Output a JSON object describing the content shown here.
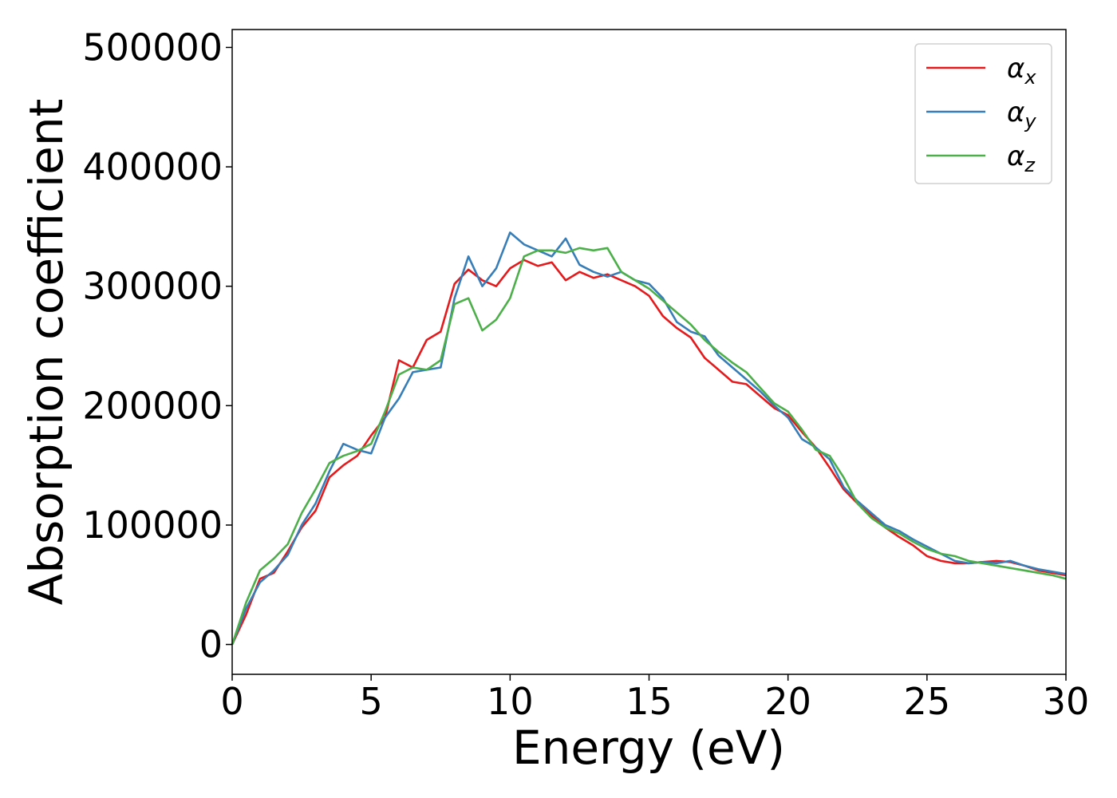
{
  "chart_data": {
    "type": "line",
    "title": "",
    "xlabel": "Energy (eV)",
    "ylabel": "Absorption coefficient",
    "xlim": [
      0,
      30
    ],
    "ylim": [
      -25000,
      515000
    ],
    "xticks": [
      0,
      5,
      10,
      15,
      20,
      25,
      30
    ],
    "xtick_labels": [
      "0",
      "5",
      "10",
      "15",
      "20",
      "25",
      "30"
    ],
    "yticks": [
      0,
      100000,
      200000,
      300000,
      400000,
      500000
    ],
    "ytick_labels": [
      "0",
      "100000",
      "200000",
      "300000",
      "400000",
      "500000"
    ],
    "grid": false,
    "legend_position": "top-right",
    "series": [
      {
        "name": "α_x",
        "symbol": "α",
        "subscript": "x",
        "color": "#e41a1c",
        "x": [
          0,
          0.5,
          1,
          1.5,
          2,
          2.5,
          3,
          3.5,
          4,
          4.5,
          5,
          5.5,
          6,
          6.5,
          7,
          7.5,
          8,
          8.5,
          9,
          9.5,
          10,
          10.5,
          11,
          11.5,
          12,
          12.5,
          13,
          13.5,
          14,
          14.5,
          15,
          15.5,
          16,
          16.5,
          17,
          17.5,
          18,
          18.5,
          19,
          19.5,
          20,
          20.5,
          21,
          21.5,
          22,
          22.5,
          23,
          23.5,
          24,
          24.5,
          25,
          25.5,
          26,
          26.5,
          27,
          27.5,
          28,
          28.5,
          29,
          29.5,
          30
        ],
        "values": [
          0,
          25000,
          55000,
          60000,
          78000,
          98000,
          112000,
          140000,
          150000,
          158000,
          175000,
          190000,
          238000,
          232000,
          255000,
          262000,
          302000,
          314000,
          305000,
          300000,
          315000,
          322000,
          317000,
          320000,
          305000,
          312000,
          307000,
          310000,
          305000,
          300000,
          292000,
          275000,
          265000,
          257000,
          240000,
          230000,
          220000,
          218000,
          208000,
          198000,
          192000,
          178000,
          165000,
          148000,
          130000,
          118000,
          108000,
          98000,
          90000,
          83000,
          74000,
          70000,
          68000,
          68000,
          69000,
          70000,
          69000,
          66000,
          62000,
          60000,
          58000
        ]
      },
      {
        "name": "α_y",
        "symbol": "α",
        "subscript": "y",
        "color": "#377eb8",
        "x": [
          0,
          0.5,
          1,
          1.5,
          2,
          2.5,
          3,
          3.5,
          4,
          4.5,
          5,
          5.5,
          6,
          6.5,
          7,
          7.5,
          8,
          8.5,
          9,
          9.5,
          10,
          10.5,
          11,
          11.5,
          12,
          12.5,
          13,
          13.5,
          14,
          14.5,
          15,
          15.5,
          16,
          16.5,
          17,
          17.5,
          18,
          18.5,
          19,
          19.5,
          20,
          20.5,
          21,
          21.5,
          22,
          22.5,
          23,
          23.5,
          24,
          24.5,
          25,
          25.5,
          26,
          26.5,
          27,
          27.5,
          28,
          28.5,
          29,
          29.5,
          30
        ],
        "values": [
          0,
          30000,
          52000,
          62000,
          75000,
          100000,
          118000,
          145000,
          168000,
          163000,
          160000,
          190000,
          206000,
          228000,
          230000,
          232000,
          290000,
          325000,
          300000,
          315000,
          345000,
          335000,
          330000,
          325000,
          340000,
          318000,
          312000,
          308000,
          312000,
          305000,
          302000,
          290000,
          270000,
          262000,
          258000,
          242000,
          232000,
          222000,
          212000,
          200000,
          190000,
          172000,
          165000,
          155000,
          132000,
          120000,
          110000,
          100000,
          95000,
          88000,
          82000,
          76000,
          70000,
          68000,
          69000,
          68000,
          70000,
          66000,
          63000,
          61000,
          59000
        ]
      },
      {
        "name": "α_z",
        "symbol": "α",
        "subscript": "z",
        "color": "#4daf4a",
        "x": [
          0,
          0.5,
          1,
          1.5,
          2,
          2.5,
          3,
          3.5,
          4,
          4.5,
          5,
          5.5,
          6,
          6.5,
          7,
          7.5,
          8,
          8.5,
          9,
          9.5,
          10,
          10.5,
          11,
          11.5,
          12,
          12.5,
          13,
          13.5,
          14,
          14.5,
          15,
          15.5,
          16,
          16.5,
          17,
          17.5,
          18,
          18.5,
          19,
          19.5,
          20,
          20.5,
          21,
          21.5,
          22,
          22.5,
          23,
          23.5,
          24,
          24.5,
          25,
          25.5,
          26,
          26.5,
          27,
          27.5,
          28,
          28.5,
          29,
          29.5,
          30
        ],
        "values": [
          0,
          35000,
          62000,
          72000,
          84000,
          110000,
          130000,
          152000,
          158000,
          162000,
          168000,
          195000,
          226000,
          232000,
          230000,
          238000,
          285000,
          290000,
          263000,
          272000,
          290000,
          325000,
          330000,
          330000,
          328000,
          332000,
          330000,
          332000,
          312000,
          305000,
          298000,
          288000,
          278000,
          268000,
          255000,
          245000,
          236000,
          228000,
          215000,
          202000,
          195000,
          180000,
          163000,
          158000,
          140000,
          118000,
          106000,
          98000,
          93000,
          86000,
          80000,
          76000,
          74000,
          70000,
          68000,
          66000,
          64000,
          62000,
          60000,
          58000,
          55000
        ]
      }
    ]
  }
}
